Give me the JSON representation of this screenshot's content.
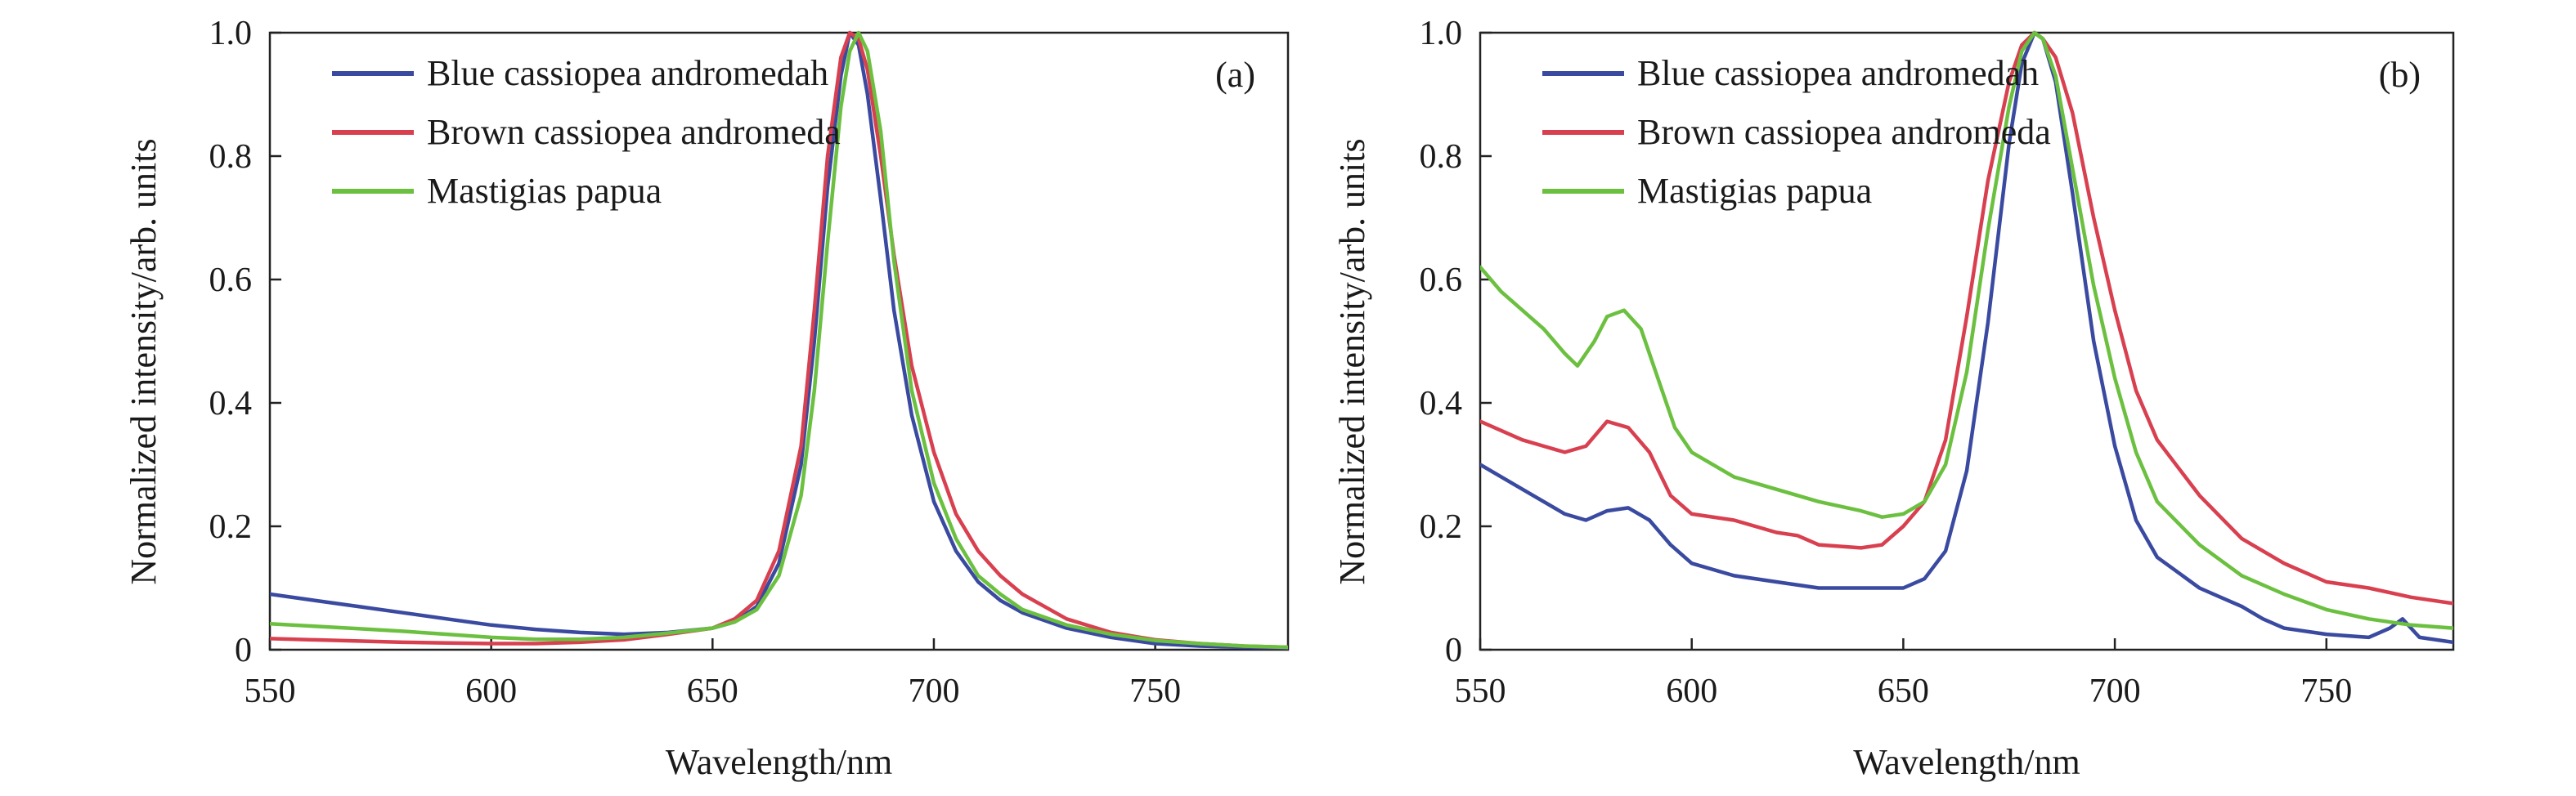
{
  "chart_data": [
    {
      "type": "line",
      "panel_label": "(a)",
      "xlabel": "Wavelength/nm",
      "ylabel": "Normalized intensity/arb. units",
      "xlim": [
        550,
        780
      ],
      "ylim": [
        0,
        1.0
      ],
      "xticks": [
        550,
        600,
        650,
        700,
        750
      ],
      "xtick_labels": [
        "550",
        "600",
        "650",
        "700",
        "750"
      ],
      "yticks": [
        0,
        0.2,
        0.4,
        0.6,
        0.8,
        1.0
      ],
      "ytick_labels": [
        "0",
        "0.2",
        "0.4",
        "0.6",
        "0.8",
        "1.0"
      ],
      "grid": false,
      "legend_position": "top-left",
      "series": [
        {
          "name": "Blue cassiopea andromedah",
          "color": "#3a4aa0",
          "x": [
            550,
            560,
            570,
            580,
            590,
            600,
            610,
            620,
            630,
            640,
            650,
            655,
            660,
            665,
            670,
            673,
            676,
            679,
            681,
            683,
            685,
            688,
            691,
            695,
            700,
            705,
            710,
            715,
            720,
            730,
            740,
            750,
            760,
            770,
            780
          ],
          "y": [
            0.09,
            0.08,
            0.07,
            0.06,
            0.05,
            0.04,
            0.033,
            0.028,
            0.025,
            0.028,
            0.035,
            0.045,
            0.07,
            0.14,
            0.3,
            0.5,
            0.75,
            0.93,
            1.0,
            0.98,
            0.9,
            0.73,
            0.55,
            0.38,
            0.24,
            0.16,
            0.11,
            0.08,
            0.06,
            0.035,
            0.02,
            0.01,
            0.006,
            0.004,
            0.003
          ]
        },
        {
          "name": "Brown cassiopea andromeda",
          "color": "#d84050",
          "x": [
            550,
            560,
            570,
            580,
            590,
            600,
            610,
            620,
            630,
            640,
            650,
            655,
            660,
            665,
            670,
            673,
            676,
            679,
            681,
            683,
            685,
            688,
            691,
            695,
            700,
            705,
            710,
            715,
            720,
            730,
            740,
            750,
            760,
            770,
            780
          ],
          "y": [
            0.018,
            0.016,
            0.014,
            0.012,
            0.011,
            0.01,
            0.01,
            0.012,
            0.016,
            0.025,
            0.035,
            0.05,
            0.08,
            0.16,
            0.33,
            0.55,
            0.8,
            0.96,
            1.0,
            0.99,
            0.94,
            0.8,
            0.64,
            0.46,
            0.32,
            0.22,
            0.16,
            0.12,
            0.09,
            0.05,
            0.028,
            0.016,
            0.01,
            0.006,
            0.004
          ]
        },
        {
          "name": "Mastigias papua",
          "color": "#6cc040",
          "x": [
            550,
            560,
            570,
            580,
            590,
            600,
            610,
            620,
            630,
            640,
            650,
            655,
            660,
            665,
            670,
            673,
            676,
            679,
            681,
            683,
            685,
            688,
            691,
            695,
            700,
            705,
            710,
            715,
            720,
            730,
            740,
            750,
            760,
            770,
            780
          ],
          "y": [
            0.042,
            0.038,
            0.034,
            0.03,
            0.025,
            0.02,
            0.017,
            0.017,
            0.02,
            0.027,
            0.035,
            0.045,
            0.065,
            0.12,
            0.25,
            0.42,
            0.66,
            0.88,
            0.97,
            1.0,
            0.97,
            0.84,
            0.63,
            0.42,
            0.27,
            0.18,
            0.12,
            0.09,
            0.065,
            0.04,
            0.025,
            0.015,
            0.01,
            0.006,
            0.004
          ]
        }
      ]
    },
    {
      "type": "line",
      "panel_label": "(b)",
      "xlabel": "Wavelength/nm",
      "ylabel": "Normalized intensity/arb. units",
      "xlim": [
        550,
        780
      ],
      "ylim": [
        0,
        1.0
      ],
      "xticks": [
        550,
        600,
        650,
        700,
        750
      ],
      "xtick_labels": [
        "550",
        "600",
        "650",
        "700",
        "750"
      ],
      "yticks": [
        0,
        0.2,
        0.4,
        0.6,
        0.8,
        1.0
      ],
      "ytick_labels": [
        "0",
        "0.2",
        "0.4",
        "0.6",
        "0.8",
        "1.0"
      ],
      "grid": false,
      "legend_position": "top-left",
      "series": [
        {
          "name": "Blue cassiopea andromedah",
          "color": "#3a4aa0",
          "x": [
            550,
            560,
            570,
            575,
            580,
            585,
            590,
            595,
            600,
            610,
            620,
            630,
            640,
            650,
            655,
            660,
            665,
            670,
            675,
            678,
            681,
            683,
            686,
            690,
            695,
            700,
            705,
            710,
            720,
            725,
            730,
            735,
            740,
            750,
            760,
            765,
            768,
            772,
            780
          ],
          "y": [
            0.3,
            0.26,
            0.22,
            0.21,
            0.225,
            0.23,
            0.21,
            0.17,
            0.14,
            0.12,
            0.11,
            0.1,
            0.1,
            0.1,
            0.115,
            0.16,
            0.29,
            0.53,
            0.82,
            0.95,
            1.0,
            0.99,
            0.92,
            0.74,
            0.5,
            0.33,
            0.21,
            0.15,
            0.1,
            0.085,
            0.07,
            0.05,
            0.035,
            0.025,
            0.02,
            0.035,
            0.05,
            0.02,
            0.012
          ]
        },
        {
          "name": "Brown cassiopea andromeda",
          "color": "#d84050",
          "x": [
            550,
            560,
            565,
            570,
            575,
            580,
            585,
            590,
            595,
            600,
            610,
            620,
            625,
            630,
            640,
            645,
            650,
            655,
            660,
            665,
            670,
            675,
            678,
            681,
            683,
            686,
            690,
            695,
            700,
            705,
            710,
            720,
            730,
            740,
            750,
            760,
            770,
            780
          ],
          "y": [
            0.37,
            0.34,
            0.33,
            0.32,
            0.33,
            0.37,
            0.36,
            0.32,
            0.25,
            0.22,
            0.21,
            0.19,
            0.185,
            0.17,
            0.165,
            0.17,
            0.2,
            0.24,
            0.34,
            0.54,
            0.76,
            0.92,
            0.98,
            1.0,
            0.99,
            0.96,
            0.87,
            0.7,
            0.55,
            0.42,
            0.34,
            0.25,
            0.18,
            0.14,
            0.11,
            0.1,
            0.085,
            0.075
          ]
        },
        {
          "name": "Mastigias papua",
          "color": "#6cc040",
          "x": [
            550,
            555,
            560,
            565,
            570,
            573,
            577,
            580,
            584,
            588,
            592,
            596,
            600,
            610,
            620,
            630,
            640,
            645,
            650,
            655,
            660,
            665,
            670,
            675,
            678,
            681,
            683,
            686,
            690,
            695,
            700,
            705,
            710,
            720,
            730,
            740,
            750,
            760,
            770,
            780
          ],
          "y": [
            0.62,
            0.58,
            0.55,
            0.52,
            0.48,
            0.46,
            0.5,
            0.54,
            0.55,
            0.52,
            0.44,
            0.36,
            0.32,
            0.28,
            0.26,
            0.24,
            0.225,
            0.215,
            0.22,
            0.24,
            0.3,
            0.45,
            0.68,
            0.88,
            0.97,
            1.0,
            0.99,
            0.93,
            0.78,
            0.59,
            0.44,
            0.32,
            0.24,
            0.17,
            0.12,
            0.09,
            0.065,
            0.05,
            0.04,
            0.035
          ]
        }
      ]
    }
  ]
}
